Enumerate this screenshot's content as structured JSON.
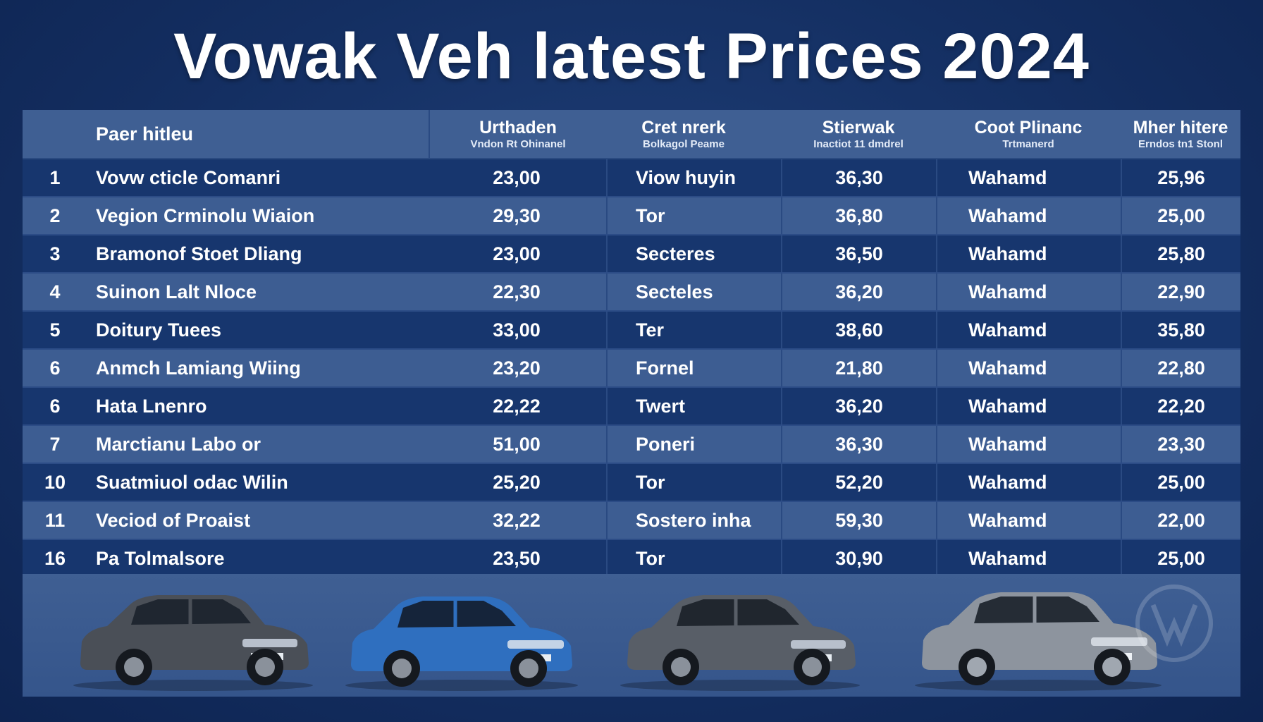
{
  "title": "Vowak Veh latest Prices 2024",
  "table": {
    "headers": [
      {
        "main": "Paer hitleu",
        "sub": ""
      },
      {
        "main": "Urthaden",
        "sub": "Vndon Rt Ohinanel"
      },
      {
        "main": "Cret nrerk",
        "sub": "Bolkagol Peame"
      },
      {
        "main": "Stierwak",
        "sub": "Inactiot 11 dmdrel"
      },
      {
        "main": "Coot Plinanc",
        "sub": "Trtmanerd"
      },
      {
        "main": "Mher hitere",
        "sub": "Erndos tn1 Stonl"
      }
    ],
    "rows": [
      {
        "num": "1",
        "name": "Vovw cticle Comanri",
        "v1": "23,00",
        "type": "Viow huyin",
        "v2": "36,30",
        "label": "Wahamd",
        "v3": "25,96"
      },
      {
        "num": "2",
        "name": "Vegion Crminolu Wiaion",
        "v1": "29,30",
        "type": "Tor",
        "v2": "36,80",
        "label": "Wahamd",
        "v3": "25,00"
      },
      {
        "num": "3",
        "name": "Bramonof Stoet Dliang",
        "v1": "23,00",
        "type": "Secteres",
        "v2": "36,50",
        "label": "Wahamd",
        "v3": "25,80"
      },
      {
        "num": "4",
        "name": "Suinon Lalt Nloce",
        "v1": "22,30",
        "type": "Secteles",
        "v2": "36,20",
        "label": "Wahamd",
        "v3": "22,90"
      },
      {
        "num": "5",
        "name": "Doitury Tuees",
        "v1": "33,00",
        "type": "Ter",
        "v2": "38,60",
        "label": "Wahamd",
        "v3": "35,80"
      },
      {
        "num": "6",
        "name": "Anmch Lamiang Wiing",
        "v1": "23,20",
        "type": "Fornel",
        "v2": "21,80",
        "label": "Wahamd",
        "v3": "22,80"
      },
      {
        "num": "6",
        "name": "Hata Lnenro",
        "v1": "22,22",
        "type": "Twert",
        "v2": "36,20",
        "label": "Wahamd",
        "v3": "22,20"
      },
      {
        "num": "7",
        "name": "Marctianu Labo or",
        "v1": "51,00",
        "type": "Poneri",
        "v2": "36,30",
        "label": "Wahamd",
        "v3": "23,30"
      },
      {
        "num": "10",
        "name": "Suatmiuol odac Wilin",
        "v1": "25,20",
        "type": "Tor",
        "v2": "52,20",
        "label": "Wahamd",
        "v3": "25,00"
      },
      {
        "num": "11",
        "name": "Veciod of Proaist",
        "v1": "32,22",
        "type": "Sostero inha",
        "v2": "59,30",
        "label": "Wahamd",
        "v3": "22,00"
      },
      {
        "num": "16",
        "name": "Pa Tolmalsore",
        "v1": "23,50",
        "type": "Tor",
        "v2": "30,90",
        "label": "Wahamd",
        "v3": "25,00"
      }
    ]
  },
  "cars": [
    {
      "icon": "suv-car-icon",
      "color": "#4a4f57"
    },
    {
      "icon": "hatchback-car-icon",
      "color": "#2f6fbf"
    },
    {
      "icon": "crossover-car-icon",
      "color": "#585e67"
    },
    {
      "icon": "suv-car-icon",
      "color": "#8d949e"
    }
  ],
  "colors": {
    "background": "#142f62",
    "row_dark": "#17366e",
    "row_light": "#3d5d92",
    "header": "#3f5f93"
  }
}
